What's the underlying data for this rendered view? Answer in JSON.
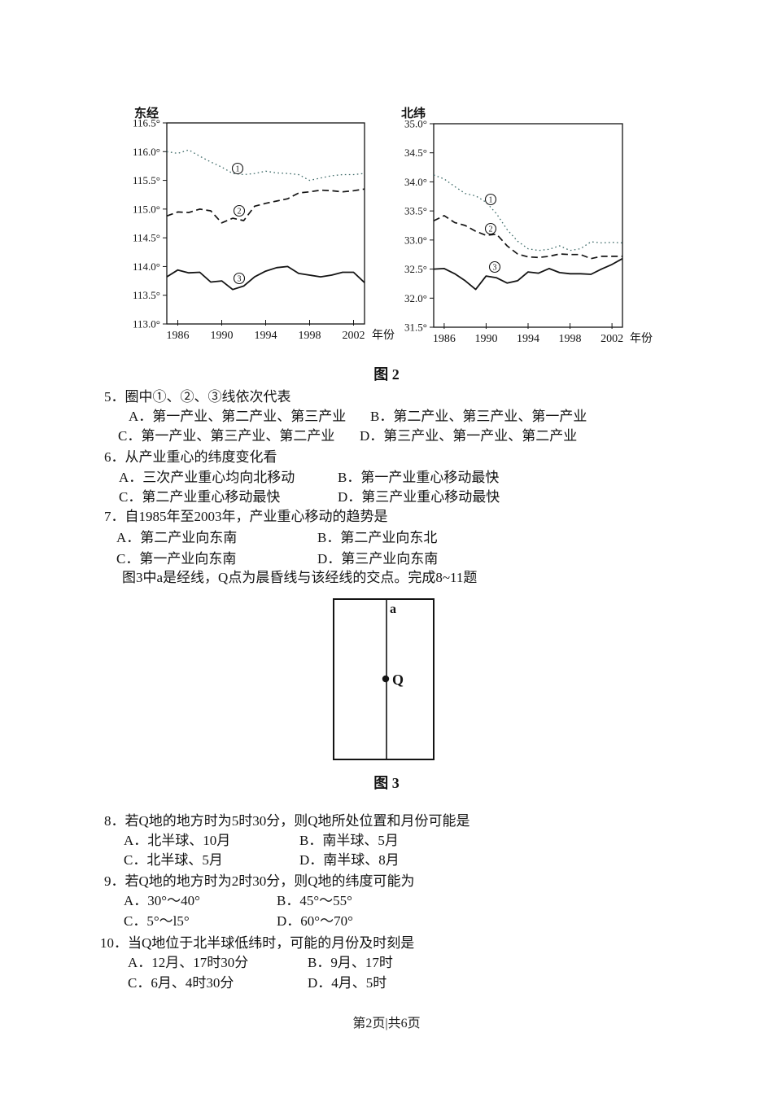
{
  "page": {
    "footer": "第2页|共6页"
  },
  "figure2": {
    "caption": "图 2"
  },
  "figure3": {
    "caption": "图 3",
    "intro": "图3中a是经线，Q点为晨昏线与该经线的交点。完成8~11题",
    "meridian_label": "a",
    "point_label": "Q"
  },
  "questions": {
    "q5": {
      "stem": "5．圈中①、②、③线依次代表",
      "oa": "A．第一产业、第二产业、第三产业",
      "ob": "B．第二产业、第三产业、第一产业",
      "oc": "C．第一产业、第三产业、第二产业",
      "od": "D．第三产业、第一产业、第二产业"
    },
    "q6": {
      "stem": "6．从产业重心的纬度变化看",
      "oa": "A．三次产业重心均向北移动",
      "ob": "B．第一产业重心移动最快",
      "oc": "C．第二产业重心移动最快",
      "od": "D．第三产业重心移动最快"
    },
    "q7": {
      "stem": "7．自1985年至2003年，产业重心移动的趋势是",
      "oa": "A．第二产业向东南",
      "ob": "B．第二产业向东北",
      "oc": "C．第一产业向东南",
      "od": "D．第三产业向东南"
    },
    "q8": {
      "stem": "8．若Q地的地方时为5时30分，则Q地所处位置和月份可能是",
      "oa": "A．北半球、10月",
      "ob": "B．南半球、5月",
      "oc": "C．北半球、5月",
      "od": "D．南半球、8月"
    },
    "q9": {
      "stem": "9．若Q地的地方时为2时30分，则Q地的纬度可能为",
      "oa": "A．30°～40°",
      "ob": "B．45°～55°",
      "oc": "C．5°～l5°",
      "od": "D．60°～70°"
    },
    "q10": {
      "stem": "10．当Q地位于北半球低纬时，可能的月份及时刻是",
      "oa": "A．12月、17时30分",
      "ob": "B．9月、17时",
      "oc": "C．6月、4时30分",
      "od": "D．4月、5时"
    }
  },
  "colors": {
    "ink": "#141414",
    "dotted_line": "#3e6a68"
  },
  "chart_data": [
    {
      "type": "line",
      "title": "东经",
      "xlabel": "年份",
      "x": [
        1985,
        1986,
        1987,
        1988,
        1989,
        1990,
        1991,
        1992,
        1993,
        1994,
        1995,
        1996,
        1997,
        1998,
        1999,
        2000,
        2001,
        2002,
        2003
      ],
      "x_ticks": [
        1986,
        1990,
        1994,
        1998,
        2002
      ],
      "ylim": [
        113.0,
        116.5
      ],
      "y_ticks": [
        "116.5°",
        "116.0°",
        "115.5°",
        "115.0°",
        "114.5°",
        "114.0°",
        "113.5°",
        "113.0°"
      ],
      "grid": false,
      "series": [
        {
          "name": "①",
          "style": "dotted",
          "values": [
            116.0,
            115.97,
            116.03,
            115.92,
            115.82,
            115.73,
            115.62,
            115.6,
            115.62,
            115.66,
            115.63,
            115.62,
            115.6,
            115.5,
            115.54,
            115.58,
            115.6,
            115.6,
            115.62
          ]
        },
        {
          "name": "②",
          "style": "dashed",
          "values": [
            114.88,
            114.95,
            114.94,
            115.0,
            114.97,
            114.76,
            114.84,
            114.8,
            115.05,
            115.1,
            115.14,
            115.18,
            115.28,
            115.3,
            115.33,
            115.32,
            115.3,
            115.32,
            115.35
          ]
        },
        {
          "name": "③",
          "style": "solid",
          "values": [
            113.82,
            113.94,
            113.89,
            113.9,
            113.73,
            113.75,
            113.6,
            113.66,
            113.82,
            113.92,
            113.98,
            114.0,
            113.88,
            113.85,
            113.82,
            113.85,
            113.9,
            113.9,
            113.72
          ]
        }
      ]
    },
    {
      "type": "line",
      "title": "北纬",
      "xlabel": "年份",
      "x": [
        1985,
        1986,
        1987,
        1988,
        1989,
        1990,
        1991,
        1992,
        1993,
        1994,
        1995,
        1996,
        1997,
        1998,
        1999,
        2000,
        2001,
        2002,
        2003
      ],
      "x_ticks": [
        1986,
        1990,
        1994,
        1998,
        2002
      ],
      "ylim": [
        31.5,
        35.0
      ],
      "y_ticks": [
        "35.0°",
        "34.5°",
        "34.0°",
        "33.5°",
        "33.0°",
        "32.5°",
        "32.0°",
        "31.5°"
      ],
      "grid": false,
      "series": [
        {
          "name": "①",
          "style": "dotted",
          "values": [
            34.12,
            34.05,
            33.92,
            33.8,
            33.76,
            33.65,
            33.45,
            33.18,
            32.98,
            32.85,
            32.82,
            32.84,
            32.9,
            32.82,
            32.85,
            32.97,
            32.95,
            32.96,
            32.95
          ]
        },
        {
          "name": "②",
          "style": "dashed",
          "values": [
            33.33,
            33.42,
            33.3,
            33.25,
            33.15,
            33.08,
            33.1,
            32.9,
            32.76,
            32.71,
            32.7,
            32.72,
            32.76,
            32.75,
            32.75,
            32.68,
            32.72,
            32.72,
            32.72
          ]
        },
        {
          "name": "③",
          "style": "solid",
          "values": [
            32.5,
            32.51,
            32.42,
            32.3,
            32.15,
            32.38,
            32.35,
            32.26,
            32.3,
            32.45,
            32.43,
            32.51,
            32.44,
            32.42,
            32.42,
            32.41,
            32.5,
            32.58,
            32.68
          ]
        }
      ]
    }
  ]
}
